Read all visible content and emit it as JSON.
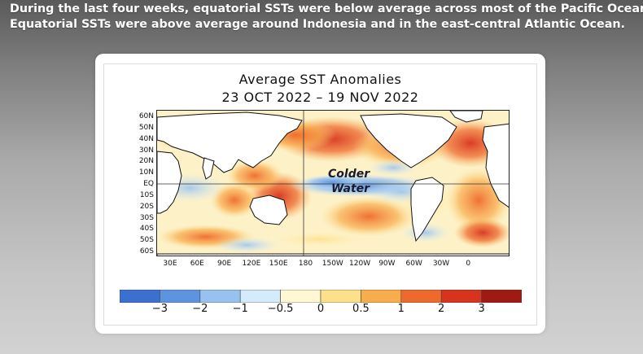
{
  "caption": {
    "line1": "During the last four weeks, equatorial SSTs were below average across most of the Pacific Ocean.",
    "line2": "Equatorial SSTs were above average around Indonesia and in the east-central Atlantic Ocean."
  },
  "map": {
    "title": "Average SST Anomalies",
    "date_range": "23 OCT 2022 – 19 NOV 2022",
    "callout_line1": "Colder",
    "callout_line2": "Water",
    "lat_labels": [
      "60N",
      "50N",
      "40N",
      "30N",
      "20N",
      "10N",
      "EQ",
      "10S",
      "20S",
      "30S",
      "40S",
      "50S",
      "60S"
    ],
    "lon_labels": [
      "30E",
      "60E",
      "90E",
      "120E",
      "150E",
      "180",
      "150W",
      "120W",
      "90W",
      "60W",
      "30W",
      "0"
    ]
  },
  "colorbar": {
    "colors": [
      "#3b6fd0",
      "#5e93e0",
      "#97c1ef",
      "#d3ebfb",
      "#fff8d2",
      "#fde08a",
      "#f9ac4c",
      "#ee6a2c",
      "#d7331d",
      "#9e1a13"
    ],
    "tick_labels": [
      "−3",
      "−2",
      "−1",
      "−0.5",
      "0",
      "0.5",
      "1",
      "2",
      "3"
    ]
  }
}
